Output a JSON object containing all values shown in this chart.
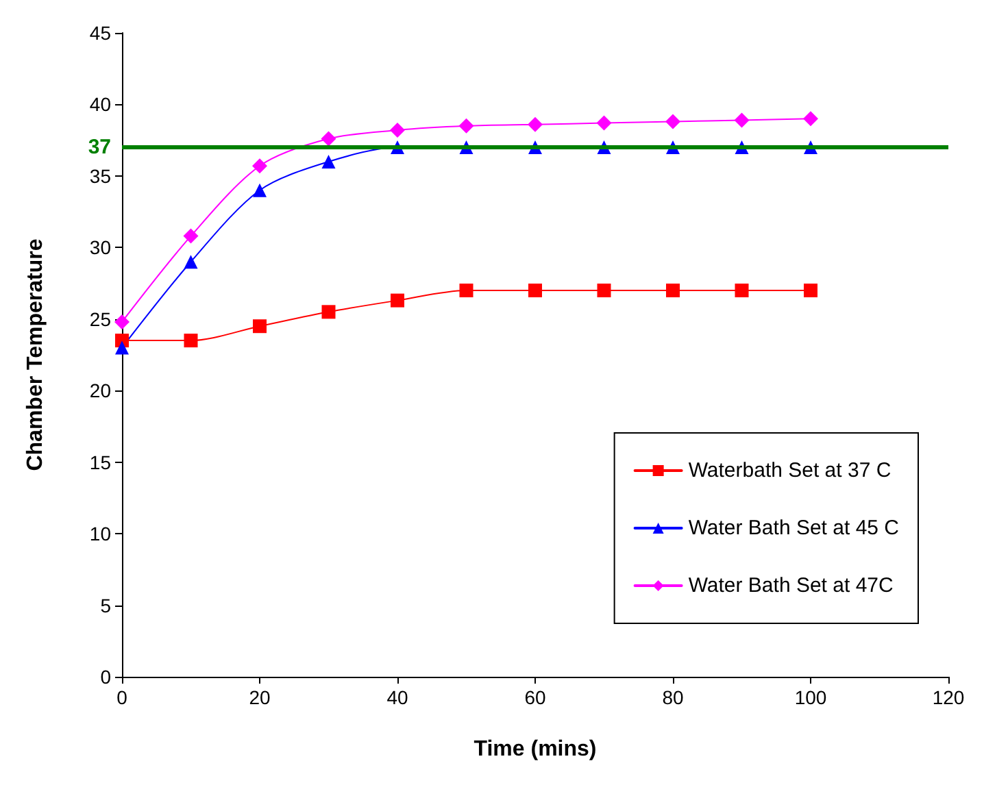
{
  "chart_data": {
    "type": "line",
    "xlabel": "Time (mins)",
    "ylabel": "Chamber Temperature",
    "x": [
      0,
      10,
      20,
      30,
      40,
      50,
      60,
      70,
      80,
      90,
      100
    ],
    "series": [
      {
        "name": "Waterbath Set at 37 C",
        "color": "#ff0000",
        "marker": "square",
        "values": [
          23.5,
          23.5,
          24.5,
          25.5,
          26.3,
          27,
          27,
          27,
          27,
          27,
          27
        ]
      },
      {
        "name": "Water Bath Set at 45 C",
        "color": "#0000ff",
        "marker": "triangle",
        "values": [
          23,
          29,
          34,
          36,
          37,
          37,
          37,
          37,
          37,
          37,
          37
        ]
      },
      {
        "name": "Water Bath Set at 47C",
        "color": "#ff00ff",
        "marker": "diamond",
        "values": [
          24.8,
          30.8,
          35.7,
          37.6,
          38.2,
          38.5,
          38.6,
          38.7,
          38.8,
          38.9,
          39
        ]
      }
    ],
    "xlim": [
      0,
      120
    ],
    "xticks": [
      0,
      20,
      40,
      60,
      80,
      100,
      120
    ],
    "ylim": [
      0,
      45
    ],
    "yticks": [
      0,
      5,
      10,
      15,
      20,
      25,
      30,
      35,
      40,
      45
    ],
    "ref_lines": [
      {
        "axis": "y",
        "value": 37,
        "label": "37",
        "color": "#008000"
      }
    ],
    "grid": false,
    "legend": "bottom right"
  }
}
